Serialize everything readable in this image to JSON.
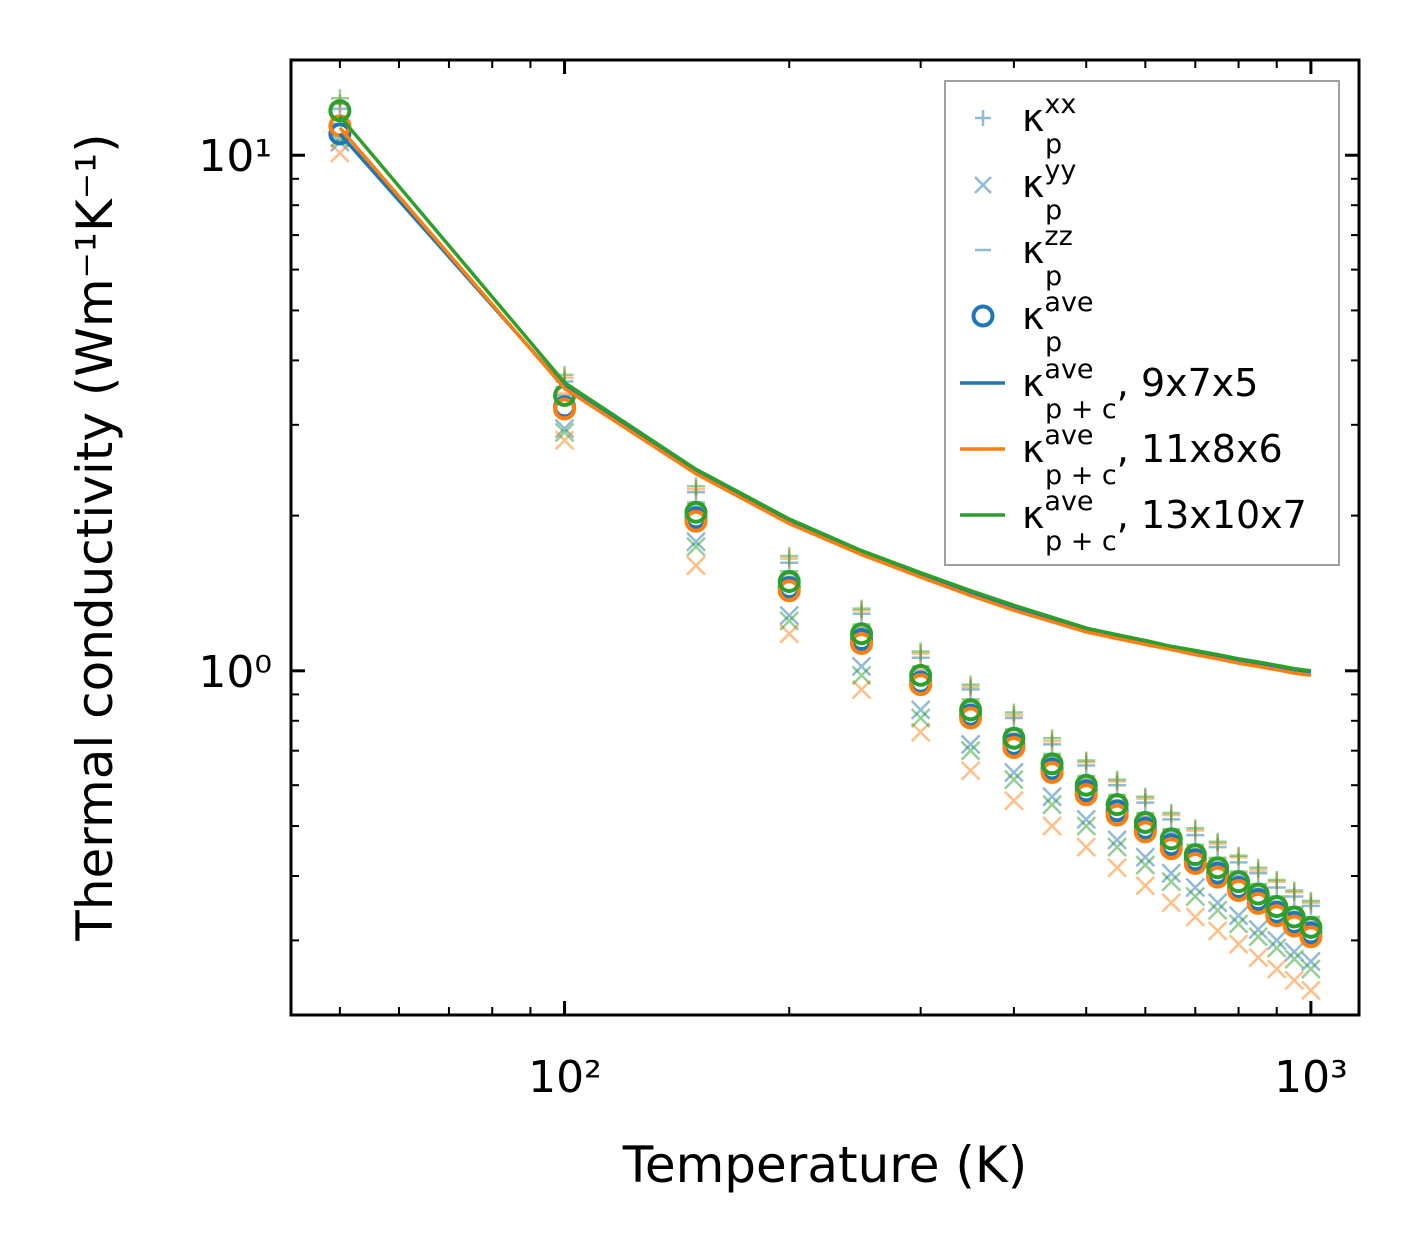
{
  "chart_data": {
    "type": "scatter",
    "title": "",
    "xlabel": "Temperature (K)",
    "ylabel": "Thermal conductivity (Wm⁻¹K⁻¹)",
    "xscale": "log",
    "yscale": "log",
    "xlim": [
      43,
      1160
    ],
    "ylim": [
      0.215,
      15.3
    ],
    "grid": false,
    "legend_position": "top-right",
    "x_ticks": [
      {
        "value": 100,
        "label": "10²"
      },
      {
        "value": 1000,
        "label": "10³"
      }
    ],
    "y_ticks": [
      {
        "value": 1,
        "label": "10⁰"
      },
      {
        "value": 10,
        "label": "10¹"
      }
    ],
    "x": [
      50,
      100,
      150,
      200,
      250,
      300,
      350,
      400,
      450,
      500,
      550,
      600,
      650,
      700,
      750,
      800,
      850,
      900,
      950,
      1000
    ],
    "meshes": [
      {
        "name": "9x7x5",
        "color": "#1f77b4",
        "kappa_p_xx": [
          12.3,
          3.64,
          2.22,
          1.62,
          1.29,
          1.06,
          0.92,
          0.81,
          0.72,
          0.655,
          0.6,
          0.555,
          0.515,
          0.48,
          0.455,
          0.425,
          0.405,
          0.38,
          0.365,
          0.35
        ],
        "kappa_p_yy": [
          10.6,
          2.95,
          1.78,
          1.28,
          1.02,
          0.84,
          0.72,
          0.635,
          0.57,
          0.515,
          0.47,
          0.435,
          0.405,
          0.38,
          0.355,
          0.335,
          0.315,
          0.3,
          0.285,
          0.273
        ],
        "kappa_p_zz": [
          11.5,
          3.42,
          2.08,
          1.52,
          1.21,
          1.0,
          0.86,
          0.755,
          0.68,
          0.615,
          0.56,
          0.52,
          0.485,
          0.45,
          0.425,
          0.4,
          0.378,
          0.357,
          0.341,
          0.326
        ],
        "kappa_p_ave": [
          11.0,
          3.25,
          1.98,
          1.45,
          1.15,
          0.95,
          0.82,
          0.72,
          0.645,
          0.585,
          0.535,
          0.495,
          0.46,
          0.43,
          0.405,
          0.38,
          0.36,
          0.34,
          0.325,
          0.31
        ],
        "kappa_pc_ave": [
          11.0,
          3.55,
          2.43,
          1.95,
          1.7,
          1.54,
          1.42,
          1.33,
          1.26,
          1.2,
          1.17,
          1.14,
          1.11,
          1.09,
          1.07,
          1.05,
          1.035,
          1.02,
          1.005,
          0.995
        ]
      },
      {
        "name": "11x8x6",
        "color": "#ff7f0e",
        "kappa_p_xx": [
          12.6,
          3.7,
          2.25,
          1.65,
          1.31,
          1.08,
          0.93,
          0.82,
          0.73,
          0.665,
          0.61,
          0.565,
          0.525,
          0.49,
          0.462,
          0.435,
          0.41,
          0.39,
          0.372,
          0.355
        ],
        "kappa_p_yy": [
          10.1,
          2.8,
          1.6,
          1.18,
          0.92,
          0.76,
          0.64,
          0.56,
          0.5,
          0.455,
          0.415,
          0.383,
          0.355,
          0.333,
          0.313,
          0.295,
          0.278,
          0.264,
          0.251,
          0.24
        ],
        "kappa_p_zz": [
          11.9,
          3.45,
          2.1,
          1.54,
          1.22,
          1.01,
          0.87,
          0.765,
          0.685,
          0.62,
          0.57,
          0.525,
          0.49,
          0.455,
          0.43,
          0.405,
          0.383,
          0.362,
          0.346,
          0.33
        ],
        "kappa_p_ave": [
          11.4,
          3.22,
          1.95,
          1.43,
          1.13,
          0.94,
          0.81,
          0.71,
          0.635,
          0.575,
          0.525,
          0.487,
          0.452,
          0.423,
          0.398,
          0.375,
          0.354,
          0.335,
          0.32,
          0.305
        ],
        "kappa_pc_ave": [
          11.3,
          3.53,
          2.41,
          1.93,
          1.68,
          1.52,
          1.4,
          1.31,
          1.245,
          1.19,
          1.155,
          1.125,
          1.1,
          1.075,
          1.055,
          1.035,
          1.02,
          1.005,
          0.99,
          0.98
        ]
      },
      {
        "name": "13x10x7",
        "color": "#2ca02c",
        "kappa_p_xx": [
          12.9,
          3.75,
          2.28,
          1.67,
          1.32,
          1.09,
          0.94,
          0.83,
          0.74,
          0.67,
          0.615,
          0.57,
          0.53,
          0.495,
          0.466,
          0.438,
          0.415,
          0.393,
          0.375,
          0.358
        ],
        "kappa_p_yy": [
          10.8,
          2.9,
          1.74,
          1.25,
          0.98,
          0.81,
          0.7,
          0.615,
          0.55,
          0.5,
          0.455,
          0.42,
          0.39,
          0.365,
          0.343,
          0.323,
          0.305,
          0.29,
          0.276,
          0.264
        ],
        "kappa_p_zz": [
          12.6,
          3.55,
          2.12,
          1.56,
          1.23,
          1.02,
          0.88,
          0.77,
          0.69,
          0.625,
          0.575,
          0.53,
          0.493,
          0.46,
          0.434,
          0.408,
          0.386,
          0.365,
          0.348,
          0.333
        ],
        "kappa_p_ave": [
          12.2,
          3.42,
          2.03,
          1.49,
          1.18,
          0.98,
          0.84,
          0.74,
          0.66,
          0.6,
          0.55,
          0.508,
          0.472,
          0.44,
          0.415,
          0.39,
          0.369,
          0.349,
          0.333,
          0.318
        ],
        "kappa_pc_ave": [
          11.9,
          3.62,
          2.46,
          1.97,
          1.71,
          1.55,
          1.43,
          1.34,
          1.27,
          1.21,
          1.175,
          1.145,
          1.115,
          1.095,
          1.075,
          1.055,
          1.04,
          1.025,
          1.01,
          1.0
        ]
      }
    ],
    "legend": [
      {
        "marker": "plus",
        "base": "κ",
        "sup": "xx",
        "sub": "p",
        "suffix": ""
      },
      {
        "marker": "x",
        "base": "κ",
        "sup": "yy",
        "sub": "p",
        "suffix": ""
      },
      {
        "marker": "hline",
        "base": "κ",
        "sup": "zz",
        "sub": "p",
        "suffix": ""
      },
      {
        "marker": "circle",
        "base": "κ",
        "sup": "ave",
        "sub": "p",
        "suffix": ""
      },
      {
        "marker": "line",
        "color": "#1f77b4",
        "base": "κ",
        "sup": "ave",
        "sub": "p + c",
        "suffix": ", 9x7x5"
      },
      {
        "marker": "line",
        "color": "#ff7f0e",
        "base": "κ",
        "sup": "ave",
        "sub": "p + c",
        "suffix": ", 11x8x6"
      },
      {
        "marker": "line",
        "color": "#2ca02c",
        "base": "κ",
        "sup": "ave",
        "sub": "p + c",
        "suffix": ", 13x10x7"
      }
    ]
  }
}
